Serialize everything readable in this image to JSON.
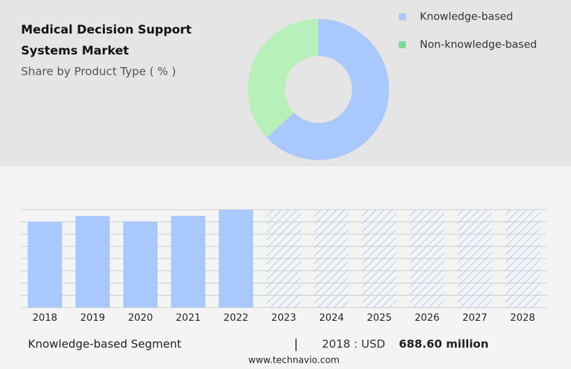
{
  "chart_data": [
    {
      "type": "pie",
      "title": "Medical Decision Support Systems Market",
      "subtitle": "Share by Product Type ( % )",
      "series": [
        {
          "name": "Knowledge-based",
          "color": "#a9c8fb",
          "values": [
            63
          ]
        },
        {
          "name": "Non-knowledge-based",
          "color": "#b7f0b8",
          "values": [
            37
          ]
        }
      ],
      "legend_colors": [
        "#a9c8fb",
        "#72e08c"
      ]
    },
    {
      "type": "bar",
      "categories": [
        "2018",
        "2019",
        "2020",
        "2021",
        "2022",
        "2023",
        "2024",
        "2025",
        "2026",
        "2027",
        "2028"
      ],
      "values": [
        688.6,
        733,
        690,
        735,
        784,
        null,
        null,
        null,
        null,
        null,
        null
      ],
      "color": "#a9c8fb",
      "ylim": [
        0,
        784
      ]
    }
  ],
  "footer": {
    "segment": "Knowledge-based Segment",
    "year": "2018 : USD",
    "value": "688.60 million",
    "source": "www.technavio.com"
  }
}
